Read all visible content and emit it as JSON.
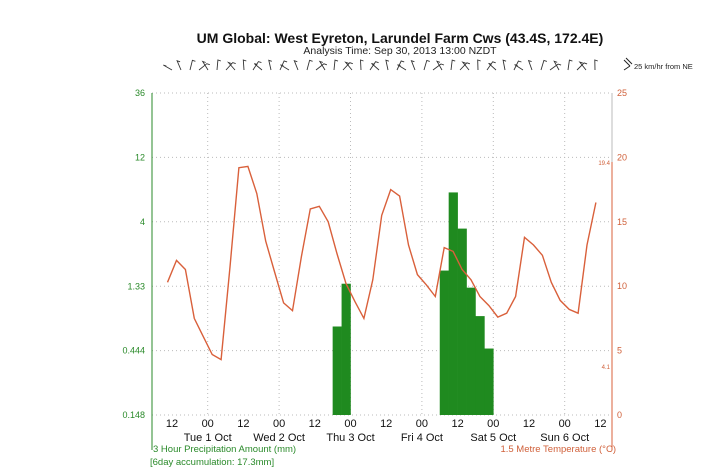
{
  "header": {
    "title": "UM Global: West Eyreton, Larundel Farm Cws (43.4S, 172.4E)",
    "subtitle": "Analysis Time: Sep 30, 2013 13:00 NZDT",
    "wind_legend": "25 km/hr from NE"
  },
  "colors": {
    "precip": "#1f8a1f",
    "temp": "#d9603b",
    "grid": "#bbbbbb"
  },
  "chart_data": {
    "type": "bar+line",
    "time_unit": "hours since Mon 30 Sep 12:00",
    "x_ticks": [
      {
        "t": 0,
        "label": "12"
      },
      {
        "t": 12,
        "label": "00",
        "day": "Tue 1 Oct"
      },
      {
        "t": 24,
        "label": "12"
      },
      {
        "t": 36,
        "label": "00",
        "day": "Wed 2 Oct"
      },
      {
        "t": 48,
        "label": "12"
      },
      {
        "t": 60,
        "label": "00",
        "day": "Thu 3 Oct"
      },
      {
        "t": 72,
        "label": "12"
      },
      {
        "t": 84,
        "label": "00",
        "day": "Fri 4 Oct"
      },
      {
        "t": 96,
        "label": "12"
      },
      {
        "t": 108,
        "label": "00",
        "day": "Sat 5 Oct"
      },
      {
        "t": 120,
        "label": "12"
      },
      {
        "t": 132,
        "label": "00",
        "day": "Sun 6 Oct"
      },
      {
        "t": 144,
        "label": "12"
      }
    ],
    "left_axis": {
      "label": "3 Hour Precipitation Amount (mm)",
      "note": "[6day accumulation: 17.3mm]",
      "scale": "log",
      "ticks": [
        "36",
        "12",
        "4",
        "1.33",
        "0.444",
        "0.148"
      ],
      "range": [
        0.148,
        36
      ]
    },
    "right_axis": {
      "label": "1.5 Metre Temperature (°C)",
      "ticks": [
        "25",
        "20",
        "15",
        "10",
        "5",
        "0"
      ],
      "range": [
        0,
        25
      ],
      "max_marker": "19.4",
      "min_marker": "4.1"
    },
    "precip": {
      "start_hours": [
        54,
        57,
        90,
        93,
        96,
        99,
        102,
        105
      ],
      "values": [
        0.67,
        1.39,
        1.74,
        6.6,
        3.56,
        1.3,
        0.8,
        0.46
      ]
    },
    "temperature": {
      "start_hour": -1.5,
      "step_hours": 3,
      "values": [
        10.3,
        12.0,
        11.3,
        7.5,
        6.1,
        4.7,
        4.3,
        11.5,
        19.2,
        19.3,
        17.2,
        13.5,
        11.1,
        8.7,
        8.1,
        12.3,
        16.0,
        16.2,
        15.0,
        12.5,
        10.2,
        8.8,
        7.5,
        10.5,
        15.5,
        17.5,
        17.0,
        13.2,
        10.9,
        10.1,
        9.2,
        13.0,
        12.7,
        11.3,
        10.5,
        9.2,
        8.5,
        7.6,
        7.9,
        9.2,
        13.8,
        13.2,
        12.4,
        10.3,
        8.9,
        8.2,
        7.9,
        13.2,
        16.5
      ]
    }
  }
}
